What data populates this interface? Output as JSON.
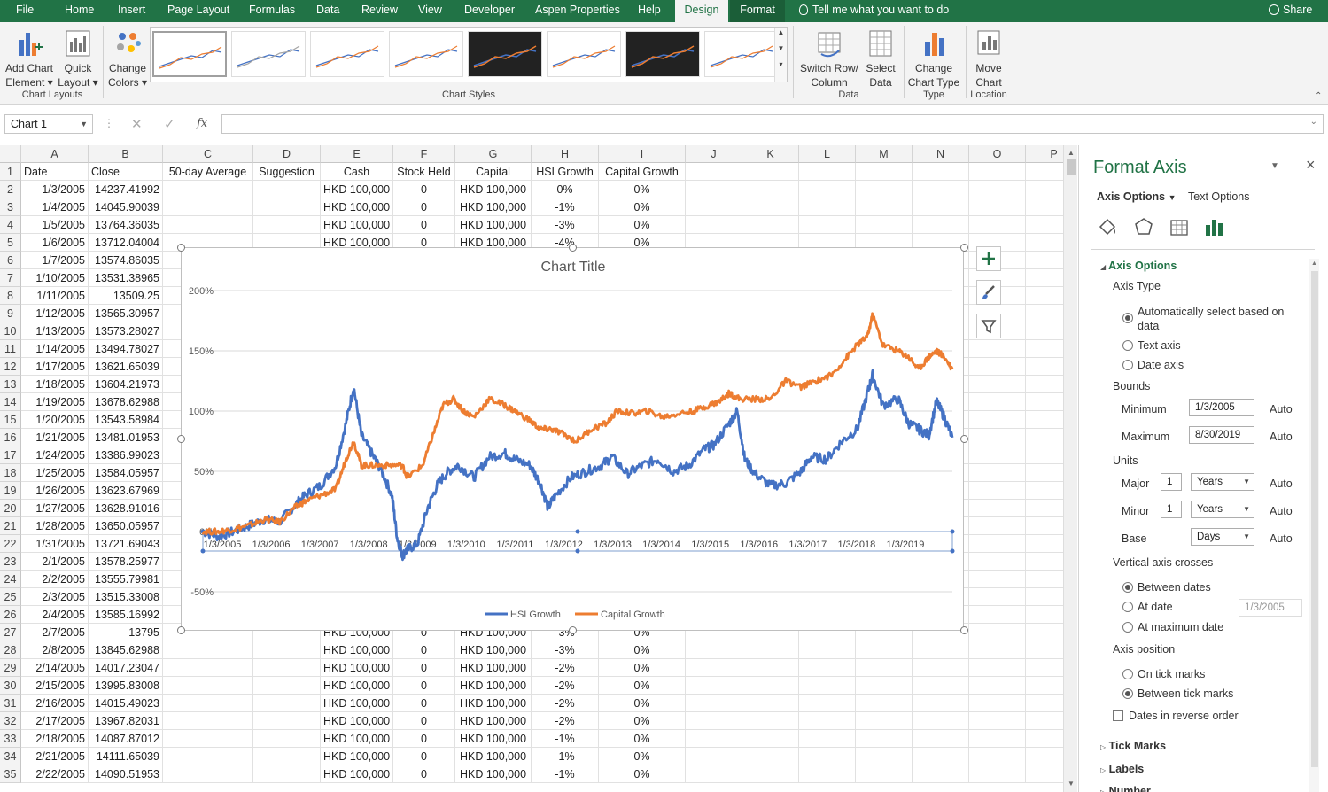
{
  "ribbon_tabs": [
    {
      "label": "File",
      "active": false
    },
    {
      "label": "Home",
      "active": false
    },
    {
      "label": "Insert",
      "active": false
    },
    {
      "label": "Page Layout",
      "active": false
    },
    {
      "label": "Formulas",
      "active": false
    },
    {
      "label": "Data",
      "active": false
    },
    {
      "label": "Review",
      "active": false
    },
    {
      "label": "View",
      "active": false
    },
    {
      "label": "Developer",
      "active": false
    },
    {
      "label": "Aspen Properties",
      "active": false
    },
    {
      "label": "Help",
      "active": false
    },
    {
      "label": "Design",
      "active": true
    },
    {
      "label": "Format",
      "active": false
    }
  ],
  "tell_me": "Tell me what you want to do",
  "share": "Share",
  "ribbon": {
    "add_chart_element": [
      "Add Chart",
      "Element"
    ],
    "quick_layout": [
      "Quick",
      "Layout"
    ],
    "change_colors": [
      "Change",
      "Colors"
    ],
    "chart_layouts_label": "Chart Layouts",
    "chart_styles_label": "Chart Styles",
    "switch_row_col": [
      "Switch Row/",
      "Column"
    ],
    "select_data": [
      "Select",
      "Data"
    ],
    "data_label": "Data",
    "change_chart_type": [
      "Change",
      "Chart Type"
    ],
    "type_label": "Type",
    "move_chart": [
      "Move",
      "Chart"
    ],
    "location_label": "Location"
  },
  "formula_bar": {
    "name_box": "Chart 1",
    "fx": "fx",
    "value": ""
  },
  "columns": [
    "A",
    "B",
    "C",
    "D",
    "E",
    "F",
    "G",
    "H",
    "I",
    "J",
    "K",
    "L",
    "M",
    "N",
    "O",
    "P"
  ],
  "header_row": [
    "Date",
    "Close",
    "50-day Average",
    "Suggestion",
    "Cash",
    "Stock Held",
    "Capital",
    "HSI Growth",
    "Capital Growth"
  ],
  "rows": [
    {
      "n": "1"
    },
    {
      "n": "2",
      "a": "1/3/2005",
      "b": "14237.41992",
      "e": "HKD 100,000",
      "f": "0",
      "g": "HKD 100,000",
      "h": "0%",
      "i": "0%"
    },
    {
      "n": "3",
      "a": "1/4/2005",
      "b": "14045.90039",
      "e": "HKD 100,000",
      "f": "0",
      "g": "HKD 100,000",
      "h": "-1%",
      "i": "0%"
    },
    {
      "n": "4",
      "a": "1/5/2005",
      "b": "13764.36035",
      "e": "HKD 100,000",
      "f": "0",
      "g": "HKD 100,000",
      "h": "-3%",
      "i": "0%"
    },
    {
      "n": "5",
      "a": "1/6/2005",
      "b": "13712.04004",
      "e": "HKD 100,000",
      "f": "0",
      "g": "HKD 100,000",
      "h": "-4%",
      "i": "0%"
    },
    {
      "n": "6",
      "a": "1/7/2005",
      "b": "13574.86035"
    },
    {
      "n": "7",
      "a": "1/10/2005",
      "b": "13531.38965"
    },
    {
      "n": "8",
      "a": "1/11/2005",
      "b": "13509.25"
    },
    {
      "n": "9",
      "a": "1/12/2005",
      "b": "13565.30957"
    },
    {
      "n": "10",
      "a": "1/13/2005",
      "b": "13573.28027"
    },
    {
      "n": "11",
      "a": "1/14/2005",
      "b": "13494.78027"
    },
    {
      "n": "12",
      "a": "1/17/2005",
      "b": "13621.65039"
    },
    {
      "n": "13",
      "a": "1/18/2005",
      "b": "13604.21973"
    },
    {
      "n": "14",
      "a": "1/19/2005",
      "b": "13678.62988"
    },
    {
      "n": "15",
      "a": "1/20/2005",
      "b": "13543.58984"
    },
    {
      "n": "16",
      "a": "1/21/2005",
      "b": "13481.01953"
    },
    {
      "n": "17",
      "a": "1/24/2005",
      "b": "13386.99023"
    },
    {
      "n": "18",
      "a": "1/25/2005",
      "b": "13584.05957"
    },
    {
      "n": "19",
      "a": "1/26/2005",
      "b": "13623.67969"
    },
    {
      "n": "20",
      "a": "1/27/2005",
      "b": "13628.91016"
    },
    {
      "n": "21",
      "a": "1/28/2005",
      "b": "13650.05957"
    },
    {
      "n": "22",
      "a": "1/31/2005",
      "b": "13721.69043"
    },
    {
      "n": "23",
      "a": "2/1/2005",
      "b": "13578.25977"
    },
    {
      "n": "24",
      "a": "2/2/2005",
      "b": "13555.79981"
    },
    {
      "n": "25",
      "a": "2/3/2005",
      "b": "13515.33008"
    },
    {
      "n": "26",
      "a": "2/4/2005",
      "b": "13585.16992"
    },
    {
      "n": "27",
      "a": "2/7/2005",
      "b": "13795",
      "e": "HKD 100,000",
      "f": "0",
      "g": "HKD 100,000",
      "h": "-3%",
      "i": "0%"
    },
    {
      "n": "28",
      "a": "2/8/2005",
      "b": "13845.62988",
      "e": "HKD 100,000",
      "f": "0",
      "g": "HKD 100,000",
      "h": "-3%",
      "i": "0%"
    },
    {
      "n": "29",
      "a": "2/14/2005",
      "b": "14017.23047",
      "e": "HKD 100,000",
      "f": "0",
      "g": "HKD 100,000",
      "h": "-2%",
      "i": "0%"
    },
    {
      "n": "30",
      "a": "2/15/2005",
      "b": "13995.83008",
      "e": "HKD 100,000",
      "f": "0",
      "g": "HKD 100,000",
      "h": "-2%",
      "i": "0%"
    },
    {
      "n": "31",
      "a": "2/16/2005",
      "b": "14015.49023",
      "e": "HKD 100,000",
      "f": "0",
      "g": "HKD 100,000",
      "h": "-2%",
      "i": "0%"
    },
    {
      "n": "32",
      "a": "2/17/2005",
      "b": "13967.82031",
      "e": "HKD 100,000",
      "f": "0",
      "g": "HKD 100,000",
      "h": "-2%",
      "i": "0%"
    },
    {
      "n": "33",
      "a": "2/18/2005",
      "b": "14087.87012",
      "e": "HKD 100,000",
      "f": "0",
      "g": "HKD 100,000",
      "h": "-1%",
      "i": "0%"
    },
    {
      "n": "34",
      "a": "2/21/2005",
      "b": "14111.65039",
      "e": "HKD 100,000",
      "f": "0",
      "g": "HKD 100,000",
      "h": "-1%",
      "i": "0%"
    },
    {
      "n": "35",
      "a": "2/22/2005",
      "b": "14090.51953",
      "e": "HKD 100,000",
      "f": "0",
      "g": "HKD 100,000",
      "h": "-1%",
      "i": "0%"
    }
  ],
  "chart_data": {
    "type": "line",
    "title": "Chart Title",
    "x_tick_labels": [
      "1/3/2005",
      "1/3/2006",
      "1/3/2007",
      "1/3/2008",
      "1/3/2009",
      "1/3/2010",
      "1/3/2011",
      "1/3/2012",
      "1/3/2013",
      "1/3/2014",
      "1/3/2015",
      "1/3/2016",
      "1/3/2017",
      "1/3/2018",
      "1/3/2019"
    ],
    "y_tick_labels": [
      "200%",
      "150%",
      "100%",
      "50%",
      "0%",
      "-50%"
    ],
    "y_ticks": [
      2.0,
      1.5,
      1.0,
      0.5,
      0.0,
      -0.5
    ],
    "ylim": [
      -0.5,
      2.0
    ],
    "xlim": [
      2005.0,
      2019.66
    ],
    "grid": true,
    "legend_position": "bottom",
    "series": [
      {
        "name": "HSI Growth",
        "color": "#4472C4",
        "x": [
          2005.0,
          2005.3,
          2005.6,
          2005.9,
          2006.2,
          2006.5,
          2006.8,
          2007.0,
          2007.3,
          2007.6,
          2007.8,
          2007.95,
          2008.1,
          2008.3,
          2008.5,
          2008.7,
          2008.8,
          2008.9,
          2009.0,
          2009.2,
          2009.4,
          2009.6,
          2009.8,
          2010.0,
          2010.3,
          2010.6,
          2010.9,
          2011.1,
          2011.4,
          2011.6,
          2011.75,
          2011.9,
          2012.2,
          2012.5,
          2012.8,
          2013.0,
          2013.3,
          2013.6,
          2013.9,
          2014.2,
          2014.5,
          2014.8,
          2015.0,
          2015.3,
          2015.45,
          2015.6,
          2015.8,
          2016.1,
          2016.4,
          2016.7,
          2016.9,
          2017.2,
          2017.5,
          2017.8,
          2018.0,
          2018.1,
          2018.3,
          2018.6,
          2018.8,
          2019.0,
          2019.2,
          2019.35,
          2019.5,
          2019.66
        ],
        "y": [
          0.0,
          -0.04,
          0.0,
          0.05,
          0.1,
          0.08,
          0.22,
          0.3,
          0.38,
          0.55,
          0.9,
          1.2,
          0.8,
          0.65,
          0.5,
          0.3,
          -0.05,
          -0.2,
          -0.15,
          -0.1,
          0.2,
          0.4,
          0.5,
          0.55,
          0.45,
          0.62,
          0.65,
          0.6,
          0.55,
          0.4,
          0.2,
          0.3,
          0.45,
          0.5,
          0.55,
          0.62,
          0.48,
          0.55,
          0.6,
          0.5,
          0.55,
          0.68,
          0.72,
          0.9,
          1.0,
          0.6,
          0.48,
          0.38,
          0.4,
          0.5,
          0.62,
          0.6,
          0.75,
          0.85,
          1.15,
          1.3,
          1.05,
          1.1,
          0.9,
          0.85,
          0.8,
          1.08,
          0.95,
          0.78
        ]
      },
      {
        "name": "Capital Growth",
        "color": "#ED7D31",
        "x": [
          2005.0,
          2005.3,
          2005.6,
          2005.9,
          2006.2,
          2006.5,
          2006.8,
          2007.0,
          2007.3,
          2007.6,
          2007.8,
          2007.95,
          2008.1,
          2008.3,
          2008.6,
          2008.9,
          2009.0,
          2009.3,
          2009.5,
          2009.7,
          2009.9,
          2010.1,
          2010.3,
          2010.6,
          2010.9,
          2011.1,
          2011.4,
          2011.6,
          2011.8,
          2012.0,
          2012.3,
          2012.6,
          2012.9,
          2013.1,
          2013.4,
          2013.7,
          2014.0,
          2014.3,
          2014.6,
          2014.9,
          2015.1,
          2015.3,
          2015.5,
          2015.8,
          2016.1,
          2016.4,
          2016.7,
          2017.0,
          2017.3,
          2017.6,
          2017.8,
          2018.0,
          2018.1,
          2018.3,
          2018.6,
          2018.8,
          2019.0,
          2019.2,
          2019.35,
          2019.5,
          2019.66
        ],
        "y": [
          0.0,
          0.0,
          0.02,
          0.05,
          0.1,
          0.08,
          0.2,
          0.25,
          0.3,
          0.35,
          0.6,
          0.75,
          0.55,
          0.55,
          0.55,
          0.55,
          0.45,
          0.55,
          0.8,
          1.05,
          1.1,
          1.0,
          0.95,
          1.1,
          1.05,
          1.0,
          0.92,
          0.85,
          0.85,
          0.82,
          0.75,
          0.85,
          0.9,
          1.0,
          0.98,
          1.0,
          0.95,
          0.98,
          1.0,
          1.05,
          1.08,
          1.15,
          1.1,
          1.1,
          1.1,
          1.25,
          1.2,
          1.25,
          1.3,
          1.45,
          1.55,
          1.62,
          1.8,
          1.55,
          1.5,
          1.45,
          1.35,
          1.45,
          1.5,
          1.45,
          1.35
        ]
      }
    ]
  },
  "format_pane": {
    "title": "Format Axis",
    "close": "×",
    "tab_axis_options": "Axis Options",
    "tab_text_options": "Text Options",
    "section_axis_options": "Axis Options",
    "axis_type_label": "Axis Type",
    "axis_type_auto": "Automatically select based on",
    "axis_type_auto2": "data",
    "axis_type_text": "Text axis",
    "axis_type_date": "Date axis",
    "bounds_label": "Bounds",
    "minimum_label": "Minimum",
    "minimum_value": "1/3/2005",
    "maximum_label": "Maximum",
    "maximum_value": "8/30/2019",
    "auto": "Auto",
    "units_label": "Units",
    "major_label": "Major",
    "major_value": "1",
    "major_unit": "Years",
    "minor_label": "Minor",
    "minor_value": "1",
    "minor_unit": "Years",
    "base_label": "Base",
    "base_unit": "Days",
    "vertical_crosses_label": "Vertical axis crosses",
    "between_dates": "Between dates",
    "at_date": "At date",
    "at_date_value": "1/3/2005",
    "at_max_date": "At maximum date",
    "axis_position_label": "Axis position",
    "on_tick_marks": "On tick marks",
    "between_tick_marks": "Between tick marks",
    "reverse_order": "Dates in reverse order",
    "tick_marks": "Tick Marks",
    "labels": "Labels",
    "number": "Number"
  }
}
